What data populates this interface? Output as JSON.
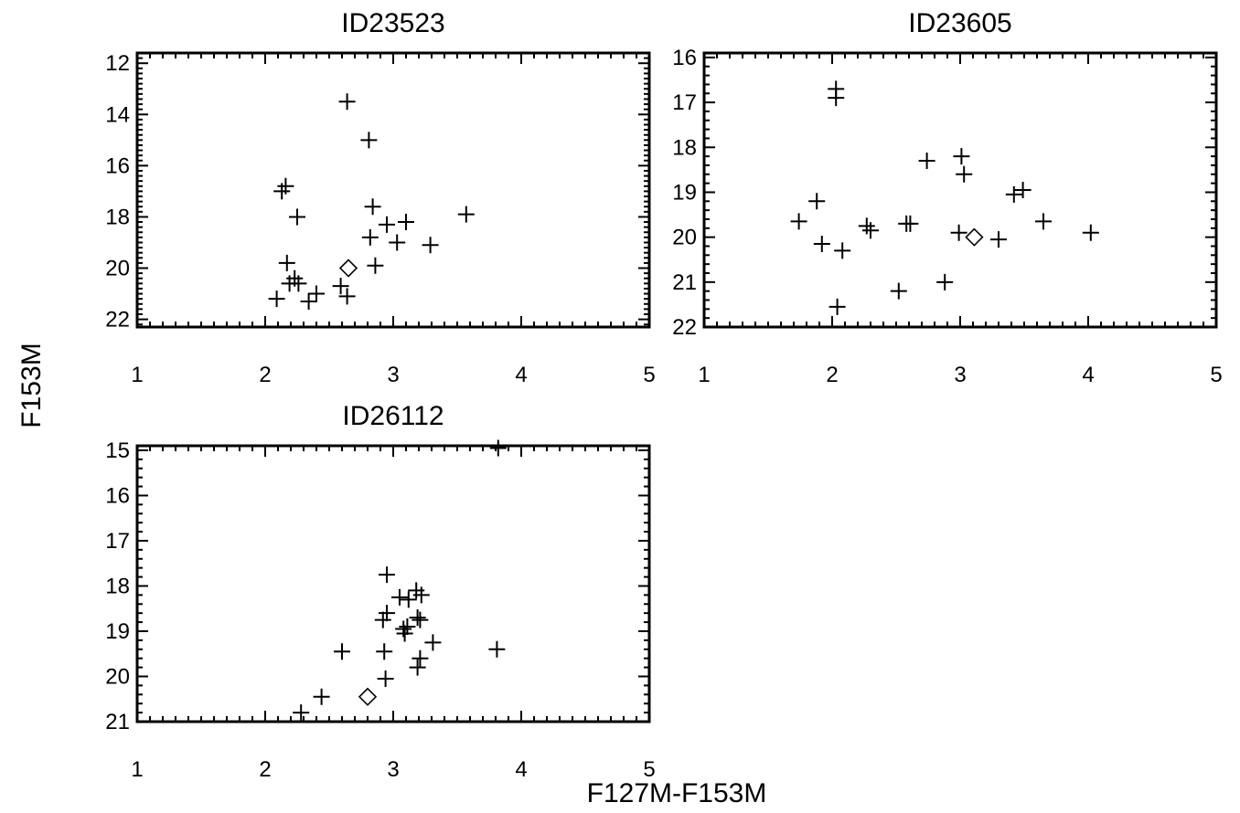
{
  "figure": {
    "xlabel": "F127M-F153M",
    "ylabel": "F153M"
  },
  "chart_data": [
    {
      "type": "scatter",
      "title": "ID23523",
      "xlim": [
        1,
        5
      ],
      "ylim": [
        22.3,
        11.6
      ],
      "y_inverted": true,
      "xticks": [
        1,
        2,
        3,
        4,
        5
      ],
      "yticks": [
        12,
        14,
        16,
        18,
        20,
        22
      ],
      "series": [
        {
          "marker": "plus",
          "points": [
            [
              2.64,
              13.5
            ],
            [
              2.81,
              15.0
            ],
            [
              2.13,
              17.0
            ],
            [
              2.16,
              16.8
            ],
            [
              2.25,
              18.0
            ],
            [
              2.84,
              17.6
            ],
            [
              2.95,
              18.3
            ],
            [
              3.1,
              18.2
            ],
            [
              3.57,
              17.9
            ],
            [
              2.82,
              18.8
            ],
            [
              3.03,
              19.0
            ],
            [
              3.29,
              19.1
            ],
            [
              2.86,
              19.9
            ],
            [
              2.17,
              19.8
            ],
            [
              2.19,
              20.6
            ],
            [
              2.23,
              20.4
            ],
            [
              2.26,
              20.6
            ],
            [
              2.09,
              21.2
            ],
            [
              2.34,
              21.3
            ],
            [
              2.4,
              21.0
            ],
            [
              2.59,
              20.7
            ],
            [
              2.64,
              21.1
            ]
          ]
        },
        {
          "marker": "diamond",
          "points": [
            [
              2.65,
              20.0
            ]
          ]
        }
      ]
    },
    {
      "type": "scatter",
      "title": "ID23605",
      "xlim": [
        1,
        5
      ],
      "ylim": [
        22.0,
        15.9
      ],
      "y_inverted": true,
      "xticks": [
        1,
        2,
        3,
        4,
        5
      ],
      "yticks": [
        16,
        17,
        18,
        19,
        20,
        21,
        22
      ],
      "series": [
        {
          "marker": "plus",
          "points": [
            [
              2.03,
              16.7
            ],
            [
              2.03,
              16.9
            ],
            [
              2.74,
              18.3
            ],
            [
              3.01,
              18.2
            ],
            [
              3.03,
              18.6
            ],
            [
              3.42,
              19.05
            ],
            [
              3.49,
              18.95
            ],
            [
              1.88,
              19.2
            ],
            [
              1.74,
              19.65
            ],
            [
              1.92,
              20.15
            ],
            [
              2.08,
              20.3
            ],
            [
              2.27,
              19.75
            ],
            [
              2.3,
              19.85
            ],
            [
              2.58,
              19.7
            ],
            [
              2.61,
              19.7
            ],
            [
              2.99,
              19.9
            ],
            [
              3.3,
              20.05
            ],
            [
              3.65,
              19.65
            ],
            [
              4.02,
              19.9
            ],
            [
              2.52,
              21.2
            ],
            [
              2.88,
              21.0
            ],
            [
              2.04,
              21.55
            ]
          ]
        },
        {
          "marker": "diamond",
          "points": [
            [
              3.11,
              20.0
            ]
          ]
        }
      ]
    },
    {
      "type": "scatter",
      "title": "ID26112",
      "xlim": [
        1,
        5
      ],
      "ylim": [
        21.0,
        14.9
      ],
      "y_inverted": true,
      "xticks": [
        1,
        2,
        3,
        4,
        5
      ],
      "yticks": [
        15,
        16,
        17,
        18,
        19,
        20,
        21
      ],
      "series": [
        {
          "marker": "plus",
          "points": [
            [
              3.82,
              14.95
            ],
            [
              2.95,
              17.75
            ],
            [
              3.05,
              18.25
            ],
            [
              3.12,
              18.3
            ],
            [
              3.18,
              18.1
            ],
            [
              3.22,
              18.2
            ],
            [
              2.95,
              18.6
            ],
            [
              2.92,
              18.75
            ],
            [
              3.08,
              18.95
            ],
            [
              3.11,
              18.9
            ],
            [
              3.09,
              19.05
            ],
            [
              3.21,
              18.75
            ],
            [
              3.19,
              18.7
            ],
            [
              3.31,
              19.25
            ],
            [
              3.21,
              19.6
            ],
            [
              3.19,
              19.8
            ],
            [
              2.93,
              19.45
            ],
            [
              2.6,
              19.45
            ],
            [
              3.81,
              19.4
            ],
            [
              2.94,
              20.05
            ],
            [
              2.44,
              20.45
            ],
            [
              2.28,
              20.8
            ]
          ]
        },
        {
          "marker": "diamond",
          "points": [
            [
              2.8,
              20.45
            ]
          ]
        }
      ]
    }
  ]
}
